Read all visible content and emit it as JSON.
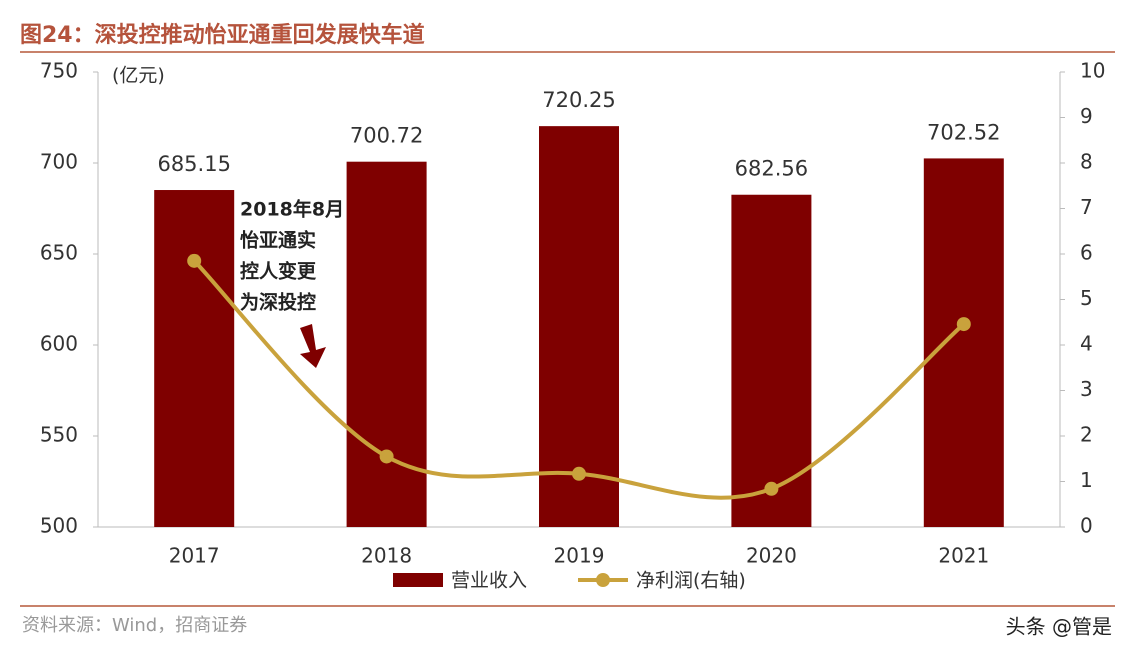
{
  "title": "图24：深投控推动怡亚通重回发展快车道",
  "source": "资料来源：Wind，招商证券",
  "watermark": "头条 @管是",
  "chart_data": {
    "type": "bar",
    "y_label": "(亿元)",
    "categories": [
      "2017",
      "2018",
      "2019",
      "2020",
      "2021"
    ],
    "series": [
      {
        "name": "营业收入",
        "type": "bar",
        "color": "#7f0000",
        "values": [
          685.15,
          700.72,
          720.25,
          682.56,
          702.52
        ]
      },
      {
        "name": "净利润(右轴)",
        "type": "line",
        "axis": "y2",
        "color": "#c9a23c",
        "values": [
          5.85,
          1.55,
          1.17,
          0.84,
          4.46
        ]
      }
    ],
    "ylim": [
      500,
      750
    ],
    "yticks": [
      500,
      550,
      600,
      650,
      700,
      750
    ],
    "y2lim": [
      0,
      10
    ],
    "y2ticks": [
      0,
      1,
      2,
      3,
      4,
      5,
      6,
      7,
      8,
      9,
      10
    ],
    "annotation": [
      "2018年8月",
      "怡亚通实",
      "控人变更",
      "为深投控"
    ],
    "annotation_color": "#7f0000"
  }
}
